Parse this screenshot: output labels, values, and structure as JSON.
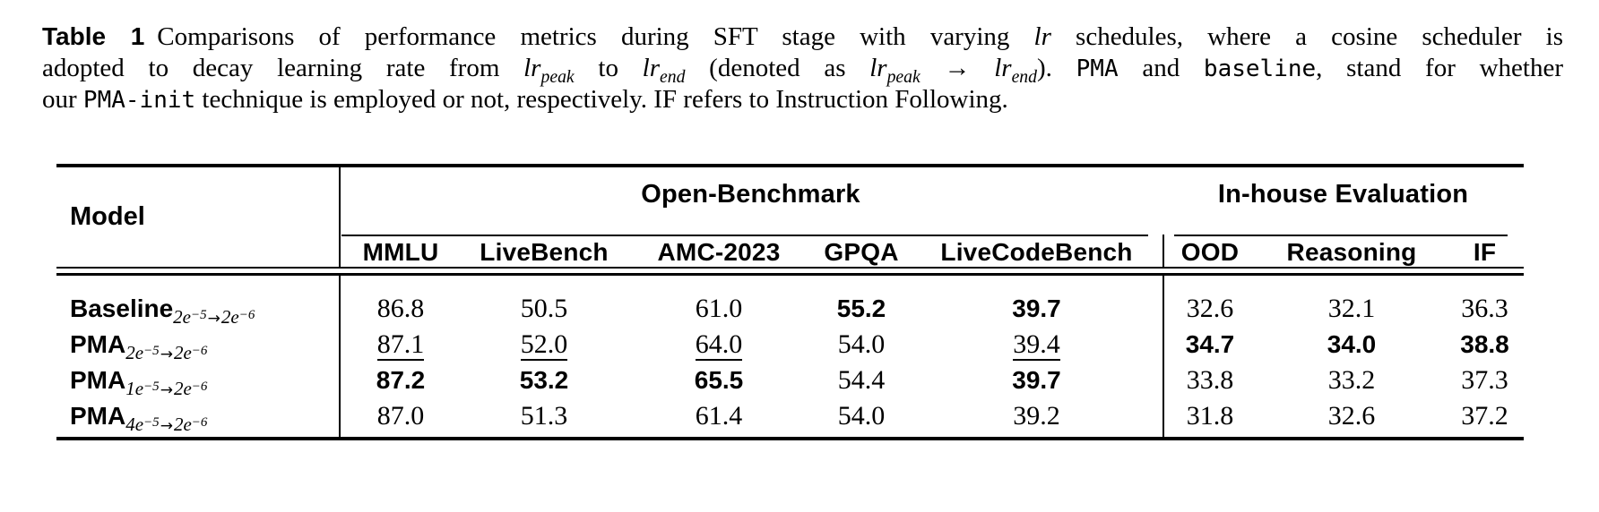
{
  "caption": {
    "lines": [
      [
        {
          "s": "label",
          "t": "Table 1"
        },
        {
          "s": "text",
          "t": "Comparisons of performance metrics during SFT stage with varying "
        },
        {
          "s": "it",
          "t": "lr"
        },
        {
          "s": "text",
          "t": " schedules, where a cosine scheduler is"
        }
      ],
      [
        {
          "s": "text",
          "t": "adopted to decay learning rate from "
        },
        {
          "s": "it",
          "t": "lr"
        },
        {
          "s": "itsub",
          "t": "peak"
        },
        {
          "s": "text",
          "t": " to "
        },
        {
          "s": "it",
          "t": "lr"
        },
        {
          "s": "itsub",
          "t": "end"
        },
        {
          "s": "text",
          "t": " (denoted as "
        },
        {
          "s": "it",
          "t": "lr"
        },
        {
          "s": "itsub",
          "t": "peak"
        },
        {
          "s": "text",
          "t": " → "
        },
        {
          "s": "it",
          "t": "lr"
        },
        {
          "s": "itsub",
          "t": "end"
        },
        {
          "s": "text",
          "t": "). "
        },
        {
          "s": "mono",
          "t": "PMA"
        },
        {
          "s": "text",
          "t": " and "
        },
        {
          "s": "mono",
          "t": "baseline"
        },
        {
          "s": "text",
          "t": ", stand for whether"
        }
      ],
      [
        {
          "s": "text",
          "t": "our "
        },
        {
          "s": "mono",
          "t": "PMA-init"
        },
        {
          "s": "text",
          "t": " technique is employed or not, respectively. IF refers to Instruction Following."
        }
      ]
    ]
  },
  "table": {
    "model_header": "Model",
    "group_headers": [
      "Open-Benchmark",
      "In-house Evaluation"
    ],
    "columns": [
      "MMLU",
      "LiveBench",
      "AMC-2023",
      "GPQA",
      "LiveCodeBench",
      "OOD",
      "Reasoning",
      "IF"
    ],
    "rows": [
      {
        "model": {
          "name": "Baseline",
          "schedule": {
            "from_base": "2e",
            "from_exp": "−5",
            "arrow": "→",
            "to_base": "2e",
            "to_exp": "−6"
          }
        },
        "cells": [
          {
            "v": "86.8",
            "s": "plain"
          },
          {
            "v": "50.5",
            "s": "plain"
          },
          {
            "v": "61.0",
            "s": "plain"
          },
          {
            "v": "55.2",
            "s": "bold"
          },
          {
            "v": "39.7",
            "s": "bold"
          },
          {
            "v": "32.6",
            "s": "plain"
          },
          {
            "v": "32.1",
            "s": "plain"
          },
          {
            "v": "36.3",
            "s": "plain"
          }
        ]
      },
      {
        "model": {
          "name": "PMA",
          "schedule": {
            "from_base": "2e",
            "from_exp": "−5",
            "arrow": "→",
            "to_base": "2e",
            "to_exp": "−6"
          }
        },
        "cells": [
          {
            "v": "87.1",
            "s": "underline"
          },
          {
            "v": "52.0",
            "s": "underline"
          },
          {
            "v": "64.0",
            "s": "underline"
          },
          {
            "v": "54.0",
            "s": "plain"
          },
          {
            "v": "39.4",
            "s": "underline"
          },
          {
            "v": "34.7",
            "s": "bold"
          },
          {
            "v": "34.0",
            "s": "bold"
          },
          {
            "v": "38.8",
            "s": "bold"
          }
        ]
      },
      {
        "model": {
          "name": "PMA",
          "schedule": {
            "from_base": "1e",
            "from_exp": "−5",
            "arrow": "→",
            "to_base": "2e",
            "to_exp": "−6"
          }
        },
        "cells": [
          {
            "v": "87.2",
            "s": "bold"
          },
          {
            "v": "53.2",
            "s": "bold"
          },
          {
            "v": "65.5",
            "s": "bold"
          },
          {
            "v": "54.4",
            "s": "plain"
          },
          {
            "v": "39.7",
            "s": "bold"
          },
          {
            "v": "33.8",
            "s": "plain"
          },
          {
            "v": "33.2",
            "s": "plain"
          },
          {
            "v": "37.3",
            "s": "plain"
          }
        ]
      },
      {
        "model": {
          "name": "PMA",
          "schedule": {
            "from_base": "4e",
            "from_exp": "−5",
            "arrow": "→",
            "to_base": "2e",
            "to_exp": "−6"
          }
        },
        "cells": [
          {
            "v": "87.0",
            "s": "plain"
          },
          {
            "v": "51.3",
            "s": "plain"
          },
          {
            "v": "61.4",
            "s": "plain"
          },
          {
            "v": "54.0",
            "s": "plain"
          },
          {
            "v": "39.2",
            "s": "plain"
          },
          {
            "v": "31.8",
            "s": "plain"
          },
          {
            "v": "32.6",
            "s": "plain"
          },
          {
            "v": "37.2",
            "s": "plain"
          }
        ]
      }
    ]
  }
}
